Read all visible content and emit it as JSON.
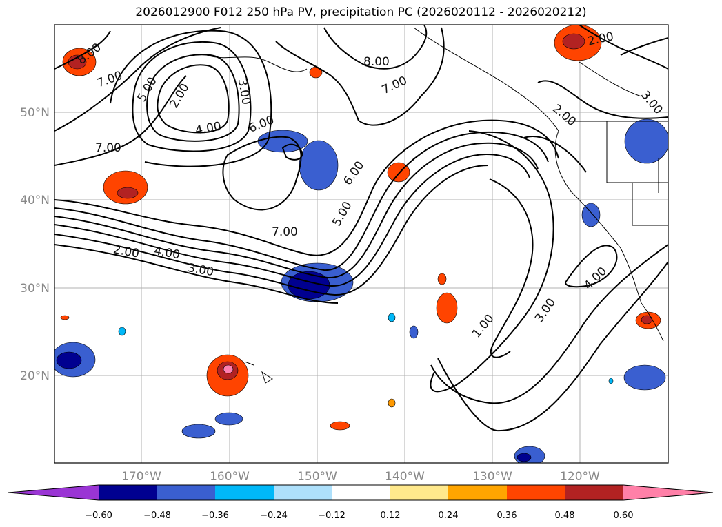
{
  "title": "2026012900 F012 250 hPa PV, precipitation PC (2026020112 - 2026020212)",
  "map": {
    "lon_labels": [
      "170°W",
      "160°W",
      "150°W",
      "140°W",
      "130°W",
      "120°W"
    ],
    "lat_labels": [
      "50°N",
      "40°N",
      "30°N",
      "20°N"
    ],
    "contour_labels": [
      "8.00",
      "7.00",
      "5.00",
      "2.00",
      "3.00",
      "4.00",
      "6.00",
      "7.00",
      "8.00",
      "7.00",
      "2.00",
      "2.00",
      "3.00",
      "6.00",
      "5.00",
      "7.00",
      "2.00",
      "4.00",
      "3.00",
      "4.00",
      "3.00",
      "1.00"
    ],
    "colors": {
      "neg_strong": "#000090",
      "neg_med": "#3a5fd0",
      "neg_light": "#00b8f8",
      "pos_light": "#ff9900",
      "pos_med": "#ff4400",
      "pos_strong": "#b22222",
      "pos_max": "#ff80b0"
    }
  },
  "colorbar": {
    "labels": [
      "−0.60",
      "−0.48",
      "−0.36",
      "−0.24",
      "−0.12",
      "0.12",
      "0.24",
      "0.36",
      "0.48",
      "0.60"
    ],
    "colors": [
      "#9a35d4",
      "#000090",
      "#3a5fd0",
      "#00b8f8",
      "#aee0fb",
      "#ffffff",
      "#ffe98c",
      "#ffa500",
      "#ff4500",
      "#b22222",
      "#ff80a8"
    ]
  }
}
